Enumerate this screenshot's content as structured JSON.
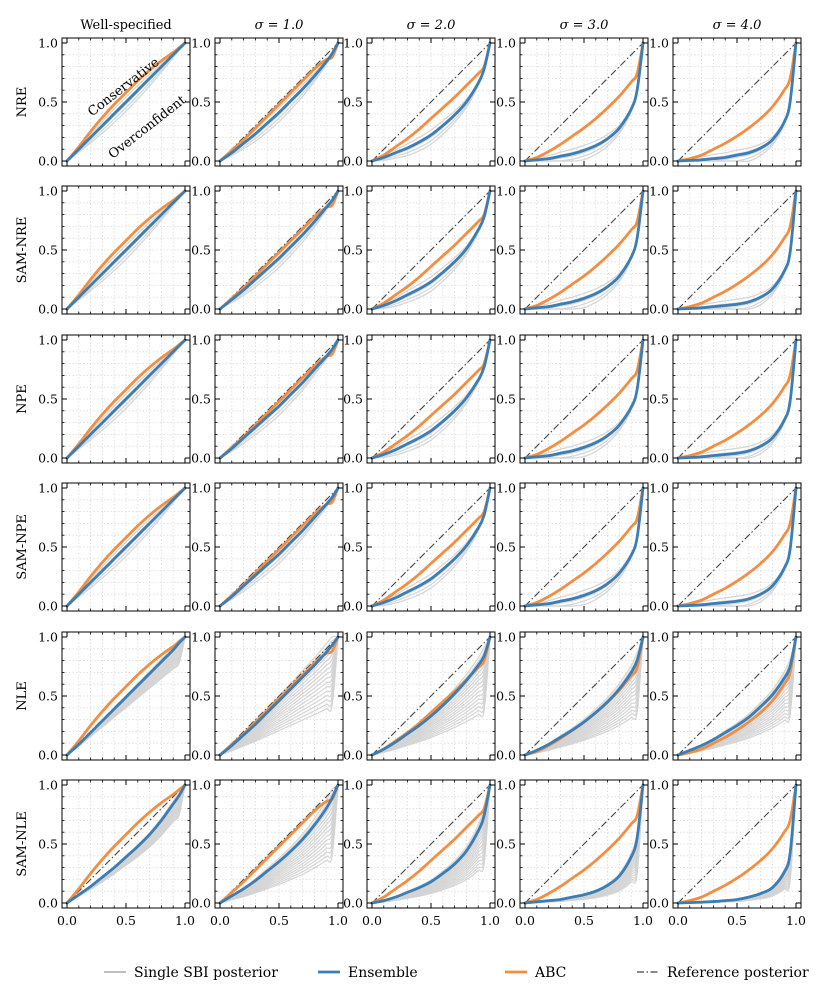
{
  "chart_data": {
    "type": "line",
    "title": "",
    "xlabel": "",
    "ylabel": "",
    "xlim": [
      0,
      1
    ],
    "ylim": [
      0,
      1
    ],
    "x_ticks": [
      "0.0",
      "0.5",
      "1.0"
    ],
    "y_ticks": [
      "0.0",
      "0.5",
      "1.0"
    ],
    "grid": true,
    "columns": [
      {
        "label": "Well-specified",
        "math": false
      },
      {
        "label": "σ = 1.0",
        "math": true
      },
      {
        "label": "σ = 2.0",
        "math": true
      },
      {
        "label": "σ = 3.0",
        "math": true
      },
      {
        "label": "σ = 4.0",
        "math": true
      }
    ],
    "rows": [
      "NRE",
      "SAM-NRE",
      "NPE",
      "SAM-NPE",
      "NLE",
      "SAM-NLE"
    ],
    "annotations": {
      "above_diagonal": "Conservative",
      "below_diagonal": "Overconfident"
    },
    "legend": {
      "placement": "bottom-center",
      "entries": [
        {
          "label": "Single SBI posterior",
          "color": "#a8a8a8",
          "style": "solid-thin"
        },
        {
          "label": "Ensemble",
          "color": "#3b7db5",
          "style": "solid-thick"
        },
        {
          "label": "ABC",
          "color": "#f28e42",
          "style": "solid-thick"
        },
        {
          "label": "Reference posterior",
          "color": "#444444",
          "style": "dash-dot"
        }
      ]
    },
    "colors": {
      "single": "#d3d3d3",
      "ensemble": "#3b7db5",
      "abc": "#f28e42",
      "reference": "#444444",
      "grid": "#d9d9d9"
    },
    "series_x": [
      0,
      0.1,
      0.2,
      0.3,
      0.4,
      0.5,
      0.6,
      0.7,
      0.8,
      0.9,
      0.95,
      1.0
    ],
    "abc_by_column": [
      [
        0,
        0.12,
        0.25,
        0.37,
        0.48,
        0.58,
        0.68,
        0.77,
        0.85,
        0.92,
        0.96,
        1.0
      ],
      [
        0,
        0.09,
        0.18,
        0.28,
        0.38,
        0.48,
        0.58,
        0.68,
        0.78,
        0.86,
        0.88,
        1.0
      ],
      [
        0,
        0.05,
        0.12,
        0.19,
        0.27,
        0.36,
        0.45,
        0.54,
        0.64,
        0.74,
        0.8,
        1.0
      ],
      [
        0,
        0.03,
        0.08,
        0.14,
        0.21,
        0.28,
        0.36,
        0.45,
        0.55,
        0.67,
        0.74,
        1.0
      ],
      [
        0,
        0.02,
        0.05,
        0.1,
        0.15,
        0.21,
        0.28,
        0.36,
        0.46,
        0.6,
        0.7,
        1.0
      ]
    ],
    "ensemble_by_row": [
      [
        [
          0,
          0.1,
          0.2,
          0.3,
          0.4,
          0.5,
          0.6,
          0.7,
          0.8,
          0.9,
          0.95,
          1.0
        ],
        [
          0,
          0.07,
          0.15,
          0.23,
          0.32,
          0.41,
          0.51,
          0.61,
          0.72,
          0.84,
          0.91,
          1.0
        ],
        [
          0,
          0.03,
          0.07,
          0.11,
          0.16,
          0.22,
          0.3,
          0.39,
          0.5,
          0.66,
          0.78,
          1.0
        ],
        [
          0,
          0.01,
          0.02,
          0.04,
          0.06,
          0.09,
          0.13,
          0.19,
          0.28,
          0.44,
          0.6,
          1.0
        ],
        [
          0,
          0.005,
          0.01,
          0.02,
          0.03,
          0.05,
          0.07,
          0.11,
          0.18,
          0.33,
          0.5,
          1.0
        ]
      ],
      [
        [
          0,
          0.1,
          0.2,
          0.3,
          0.4,
          0.5,
          0.6,
          0.7,
          0.8,
          0.9,
          0.95,
          1.0
        ],
        [
          0,
          0.08,
          0.16,
          0.25,
          0.34,
          0.43,
          0.53,
          0.63,
          0.74,
          0.86,
          0.92,
          1.0
        ],
        [
          0,
          0.03,
          0.07,
          0.12,
          0.17,
          0.23,
          0.31,
          0.4,
          0.51,
          0.67,
          0.78,
          1.0
        ],
        [
          0,
          0.01,
          0.02,
          0.04,
          0.06,
          0.09,
          0.13,
          0.19,
          0.28,
          0.44,
          0.6,
          1.0
        ],
        [
          0,
          0.004,
          0.01,
          0.02,
          0.03,
          0.04,
          0.06,
          0.1,
          0.17,
          0.32,
          0.48,
          1.0
        ]
      ],
      [
        [
          0,
          0.1,
          0.2,
          0.3,
          0.4,
          0.5,
          0.6,
          0.7,
          0.8,
          0.9,
          0.95,
          1.0
        ],
        [
          0,
          0.08,
          0.17,
          0.26,
          0.35,
          0.44,
          0.54,
          0.64,
          0.75,
          0.86,
          0.92,
          1.0
        ],
        [
          0,
          0.03,
          0.07,
          0.12,
          0.17,
          0.23,
          0.31,
          0.4,
          0.51,
          0.66,
          0.77,
          1.0
        ],
        [
          0,
          0.01,
          0.02,
          0.04,
          0.06,
          0.09,
          0.13,
          0.19,
          0.28,
          0.43,
          0.58,
          1.0
        ],
        [
          0,
          0.004,
          0.01,
          0.02,
          0.03,
          0.04,
          0.06,
          0.1,
          0.17,
          0.32,
          0.48,
          1.0
        ]
      ],
      [
        [
          0,
          0.1,
          0.2,
          0.3,
          0.4,
          0.5,
          0.6,
          0.7,
          0.8,
          0.9,
          0.95,
          1.0
        ],
        [
          0,
          0.08,
          0.17,
          0.26,
          0.35,
          0.44,
          0.54,
          0.64,
          0.75,
          0.86,
          0.92,
          1.0
        ],
        [
          0,
          0.03,
          0.07,
          0.12,
          0.17,
          0.23,
          0.31,
          0.4,
          0.51,
          0.66,
          0.77,
          1.0
        ],
        [
          0,
          0.01,
          0.02,
          0.04,
          0.06,
          0.09,
          0.13,
          0.19,
          0.28,
          0.43,
          0.58,
          1.0
        ],
        [
          0,
          0.004,
          0.01,
          0.02,
          0.03,
          0.04,
          0.06,
          0.1,
          0.17,
          0.32,
          0.48,
          1.0
        ]
      ],
      [
        [
          0,
          0.09,
          0.19,
          0.29,
          0.39,
          0.49,
          0.59,
          0.69,
          0.79,
          0.89,
          0.95,
          1.0
        ],
        [
          0,
          0.08,
          0.17,
          0.26,
          0.36,
          0.46,
          0.56,
          0.66,
          0.76,
          0.87,
          0.93,
          1.0
        ],
        [
          0,
          0.05,
          0.11,
          0.18,
          0.25,
          0.33,
          0.42,
          0.52,
          0.63,
          0.76,
          0.84,
          1.0
        ],
        [
          0,
          0.04,
          0.09,
          0.15,
          0.21,
          0.28,
          0.36,
          0.45,
          0.56,
          0.7,
          0.8,
          1.0
        ],
        [
          0,
          0.04,
          0.08,
          0.13,
          0.19,
          0.25,
          0.32,
          0.41,
          0.51,
          0.65,
          0.75,
          1.0
        ]
      ],
      [
        [
          0,
          0.07,
          0.14,
          0.22,
          0.3,
          0.39,
          0.48,
          0.58,
          0.7,
          0.84,
          0.91,
          1.0
        ],
        [
          0,
          0.06,
          0.12,
          0.19,
          0.27,
          0.35,
          0.44,
          0.54,
          0.66,
          0.8,
          0.89,
          1.0
        ],
        [
          0,
          0.02,
          0.05,
          0.09,
          0.13,
          0.18,
          0.25,
          0.33,
          0.44,
          0.61,
          0.74,
          1.0
        ],
        [
          0,
          0.01,
          0.02,
          0.03,
          0.05,
          0.07,
          0.1,
          0.15,
          0.23,
          0.39,
          0.55,
          1.0
        ],
        [
          0,
          0.003,
          0.007,
          0.012,
          0.02,
          0.03,
          0.05,
          0.08,
          0.13,
          0.26,
          0.42,
          1.0
        ]
      ]
    ],
    "single_count_by_row": [
      5,
      5,
      5,
      5,
      16,
      16
    ]
  }
}
